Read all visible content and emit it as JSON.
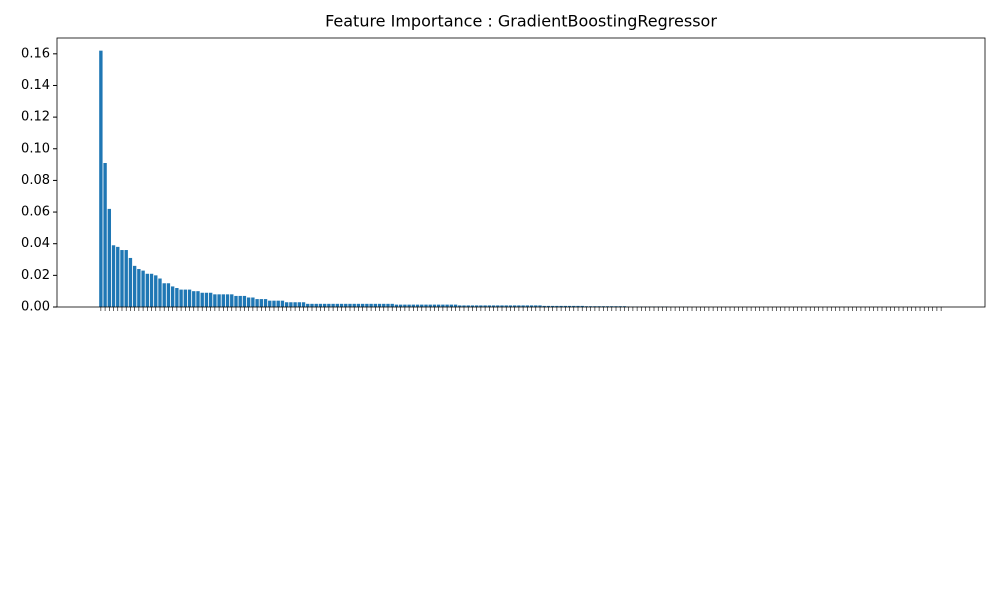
{
  "chart_data": {
    "type": "bar",
    "title": "Feature Importance : GradientBoostingRegressor",
    "categories": [
      null,
      null,
      null,
      null,
      null,
      null,
      null,
      null,
      null,
      null,
      null,
      null,
      null,
      null,
      null,
      null,
      null,
      null,
      null,
      null,
      null,
      null,
      null,
      null,
      null,
      null,
      null,
      null,
      null,
      null,
      null,
      null,
      null,
      null,
      null,
      null,
      null,
      null,
      null,
      null,
      null,
      null,
      null,
      null,
      null,
      null,
      null,
      null,
      null,
      null,
      null,
      null,
      null,
      null,
      null,
      null,
      null,
      null,
      null,
      null,
      null,
      null,
      null,
      null,
      null,
      null,
      null,
      null,
      null,
      null,
      null,
      null,
      null,
      null,
      null,
      null,
      null,
      null,
      null,
      null,
      null,
      null,
      null,
      null,
      null,
      null,
      null,
      null,
      null,
      null,
      null,
      null,
      null,
      null,
      null,
      null,
      null,
      null,
      null,
      null,
      null,
      null,
      null,
      null,
      null,
      null,
      null,
      null,
      null,
      null,
      null,
      null,
      null,
      null,
      null,
      null,
      null,
      null,
      null,
      null,
      null,
      null,
      null,
      null,
      null,
      null,
      null,
      null,
      null,
      null,
      null,
      null,
      null,
      null,
      null,
      null,
      null,
      null,
      null,
      null,
      null,
      null,
      null,
      null,
      null,
      null,
      null,
      null,
      null,
      null,
      null,
      null,
      null,
      null,
      null,
      null,
      null,
      null,
      null,
      null,
      null,
      null,
      null,
      null,
      null,
      null,
      null,
      null,
      null,
      null,
      null,
      null,
      null,
      null,
      null,
      null,
      null,
      null,
      null,
      null,
      null,
      null,
      null,
      null,
      null,
      null,
      null,
      null,
      null,
      null,
      null,
      null,
      null,
      null,
      null,
      null,
      null,
      null,
      null,
      null
    ],
    "values": [
      0.162,
      0.091,
      0.062,
      0.039,
      0.038,
      0.036,
      0.036,
      0.031,
      0.026,
      0.024,
      0.023,
      0.021,
      0.021,
      0.02,
      0.018,
      0.015,
      0.015,
      0.013,
      0.012,
      0.011,
      0.011,
      0.011,
      0.01,
      0.01,
      0.009,
      0.009,
      0.009,
      0.008,
      0.008,
      0.008,
      0.008,
      0.008,
      0.007,
      0.007,
      0.007,
      0.006,
      0.006,
      0.005,
      0.005,
      0.005,
      0.004,
      0.004,
      0.004,
      0.004,
      0.003,
      0.003,
      0.003,
      0.003,
      0.003,
      0.002,
      0.002,
      0.002,
      0.002,
      0.002,
      0.002,
      0.002,
      0.002,
      0.002,
      0.002,
      0.002,
      0.002,
      0.002,
      0.002,
      0.002,
      0.002,
      0.002,
      0.002,
      0.002,
      0.002,
      0.002,
      0.0015,
      0.0015,
      0.0015,
      0.0015,
      0.0015,
      0.0015,
      0.0015,
      0.0015,
      0.0015,
      0.0015,
      0.0015,
      0.0015,
      0.0015,
      0.0015,
      0.0015,
      0.001,
      0.001,
      0.001,
      0.001,
      0.001,
      0.001,
      0.001,
      0.001,
      0.001,
      0.001,
      0.001,
      0.001,
      0.001,
      0.001,
      0.001,
      0.001,
      0.001,
      0.001,
      0.001,
      0.001,
      0.0007,
      0.0007,
      0.0007,
      0.0007,
      0.0007,
      0.0007,
      0.0007,
      0.0007,
      0.0007,
      0.0007,
      0.0005,
      0.0005,
      0.0005,
      0.0005,
      0.0005,
      0.0005,
      0.0005,
      0.0005,
      0.0005,
      0.0005,
      0.0003,
      0.0003,
      0.0003,
      0.0003,
      0.0003,
      0.0003,
      0.0003,
      0.0003,
      0.0003,
      0.0003,
      0.0001,
      0.0001,
      0.0001,
      0.0001,
      0.0001,
      0,
      0,
      0,
      0,
      0,
      0,
      0,
      0,
      0,
      0,
      0,
      0,
      0,
      0,
      0,
      0,
      0,
      0,
      0,
      0,
      0,
      0,
      0,
      0,
      0,
      0,
      0,
      0,
      0,
      0,
      0,
      0,
      0,
      0,
      0,
      0,
      0,
      0,
      0,
      0,
      0,
      0,
      0,
      0,
      0,
      0,
      0,
      0,
      0,
      0,
      0,
      0,
      0,
      0,
      0,
      0,
      0,
      0,
      0,
      0
    ],
    "color": "#1f77b4",
    "ylim": [
      0,
      0.17
    ],
    "yticks": [
      {
        "value": 0,
        "label": "0.00"
      },
      {
        "value": 0.02,
        "label": "0.02"
      },
      {
        "value": 0.04,
        "label": "0.04"
      },
      {
        "value": 0.06,
        "label": "0.06"
      },
      {
        "value": 0.08,
        "label": "0.08"
      },
      {
        "value": 0.1,
        "label": "0.10"
      },
      {
        "value": 0.12,
        "label": "0.12"
      },
      {
        "value": 0.14,
        "label": "0.14"
      },
      {
        "value": 0.16,
        "label": "0.16"
      }
    ],
    "grid": false
  }
}
